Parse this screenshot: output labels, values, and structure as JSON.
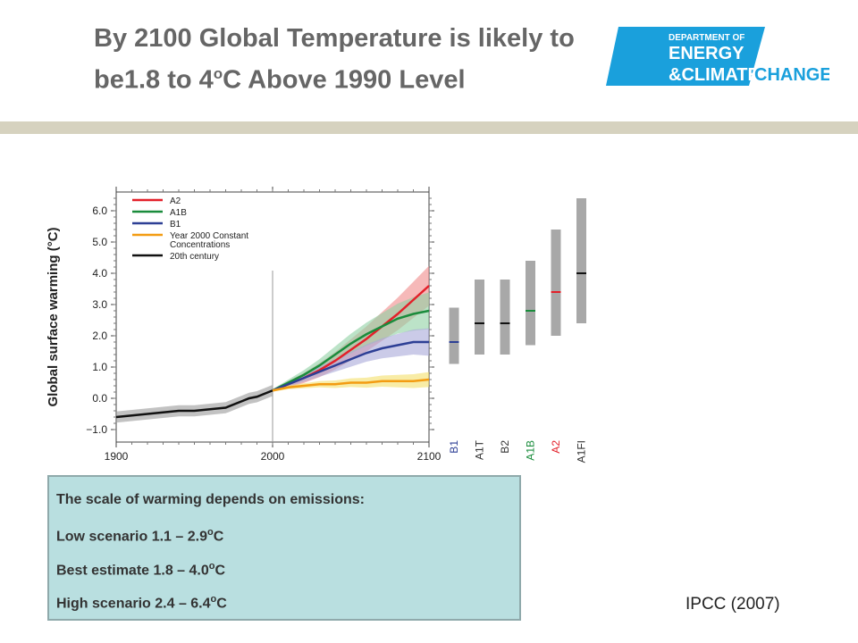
{
  "slide": {
    "title_part1": "By 2100 Global Temperature is likely to be1.8 to 4",
    "title_sup": "o",
    "title_part2": "C Above 1990 Level",
    "logo": {
      "line1": "DEPARTMENT OF",
      "line2": "ENERGY",
      "line3": "&CLIMATE",
      "line4": "CHANGE"
    },
    "source": "IPCC (2007)"
  },
  "infobox": {
    "heading": "The scale of warming depends on emissions:",
    "low_text": "Low scenario 1.1 – 2.9",
    "best_text": "Best estimate 1.8 – 4.0",
    "high_text": "High scenario 2.4 – 6.4",
    "deg_o": "o",
    "deg_c": "C"
  },
  "chart_data": {
    "type": "line",
    "ylabel": "Global surface warming (°C)",
    "xlim": [
      1900,
      2100
    ],
    "ylim": [
      -1.4,
      6.6
    ],
    "x_ticks": [
      1900,
      2000,
      2100
    ],
    "y_ticks": [
      6.0,
      5.0,
      4.0,
      3.0,
      2.0,
      1.0,
      0.0,
      -1.0
    ],
    "y_tick_labels": [
      "6.0",
      "5.0",
      "4.0",
      "3.0",
      "2.0",
      "1.0",
      "0.0",
      "−1.0"
    ],
    "vertical_marker_x": 2000,
    "legend_position": "top-left",
    "legend": [
      {
        "label": "A2",
        "color": "#e3202a"
      },
      {
        "label": "A1B",
        "color": "#1a8c3c"
      },
      {
        "label": "B1",
        "color": "#2d3f95"
      },
      {
        "label": "Year 2000 Constant Concentrations",
        "color": "#f39c12"
      },
      {
        "label": "20th century",
        "color": "#111111"
      }
    ],
    "legend_lines": [
      "A2",
      "A1B",
      "B1",
      "Year 2000 Constant",
      "Concentrations",
      "20th century"
    ],
    "series": [
      {
        "name": "20th century",
        "color": "#111111",
        "band_color": "#9a9a9a",
        "x": [
          1900,
          1910,
          1920,
          1930,
          1940,
          1950,
          1960,
          1970,
          1980,
          1985,
          1990,
          1995,
          2000
        ],
        "y": [
          -0.6,
          -0.55,
          -0.5,
          -0.45,
          -0.4,
          -0.4,
          -0.35,
          -0.3,
          -0.1,
          0.0,
          0.05,
          0.15,
          0.25
        ],
        "spread": 0.18
      },
      {
        "name": "A2",
        "color": "#e3202a",
        "band_color": "#f08b8b",
        "x": [
          2000,
          2010,
          2020,
          2030,
          2040,
          2050,
          2060,
          2070,
          2080,
          2090,
          2100
        ],
        "y": [
          0.25,
          0.45,
          0.65,
          0.9,
          1.2,
          1.55,
          1.9,
          2.3,
          2.7,
          3.15,
          3.6
        ],
        "spread_end": 0.6
      },
      {
        "name": "A1B",
        "color": "#1a8c3c",
        "band_color": "#8fd0a4",
        "x": [
          2000,
          2010,
          2020,
          2030,
          2040,
          2050,
          2060,
          2070,
          2080,
          2090,
          2100
        ],
        "y": [
          0.25,
          0.5,
          0.75,
          1.05,
          1.4,
          1.75,
          2.05,
          2.3,
          2.55,
          2.7,
          2.8
        ],
        "spread_end": 0.55
      },
      {
        "name": "B1",
        "color": "#2d3f95",
        "band_color": "#a9a9d8",
        "x": [
          2000,
          2010,
          2020,
          2030,
          2040,
          2050,
          2060,
          2070,
          2080,
          2090,
          2100
        ],
        "y": [
          0.25,
          0.45,
          0.65,
          0.85,
          1.05,
          1.25,
          1.45,
          1.6,
          1.7,
          1.8,
          1.8
        ],
        "spread_end": 0.4
      },
      {
        "name": "Year 2000 Constant Concentrations",
        "color": "#f39c12",
        "band_color": "#f4e06a",
        "x": [
          2000,
          2010,
          2020,
          2030,
          2040,
          2050,
          2060,
          2070,
          2080,
          2090,
          2100
        ],
        "y": [
          0.25,
          0.35,
          0.4,
          0.45,
          0.45,
          0.5,
          0.5,
          0.55,
          0.55,
          0.55,
          0.6
        ],
        "spread_end": 0.2
      }
    ],
    "range_bars": [
      {
        "label": "B1",
        "low": 1.1,
        "high": 2.9,
        "best": 1.8,
        "label_color": "#2d3f95",
        "best_color": "#2d3f95"
      },
      {
        "label": "A1T",
        "low": 1.4,
        "high": 3.8,
        "best": 2.4,
        "label_color": "#333333",
        "best_color": "#111111"
      },
      {
        "label": "B2",
        "low": 1.4,
        "high": 3.8,
        "best": 2.4,
        "label_color": "#333333",
        "best_color": "#111111"
      },
      {
        "label": "A1B",
        "low": 1.7,
        "high": 4.4,
        "best": 2.8,
        "label_color": "#1a8c3c",
        "best_color": "#1a8c3c"
      },
      {
        "label": "A2",
        "low": 2.0,
        "high": 5.4,
        "best": 3.4,
        "label_color": "#e3202a",
        "best_color": "#e3202a"
      },
      {
        "label": "A1FI",
        "low": 2.4,
        "high": 6.4,
        "best": 4.0,
        "label_color": "#333333",
        "best_color": "#111111"
      }
    ],
    "range_bar_color": "#a8a8a8"
  }
}
